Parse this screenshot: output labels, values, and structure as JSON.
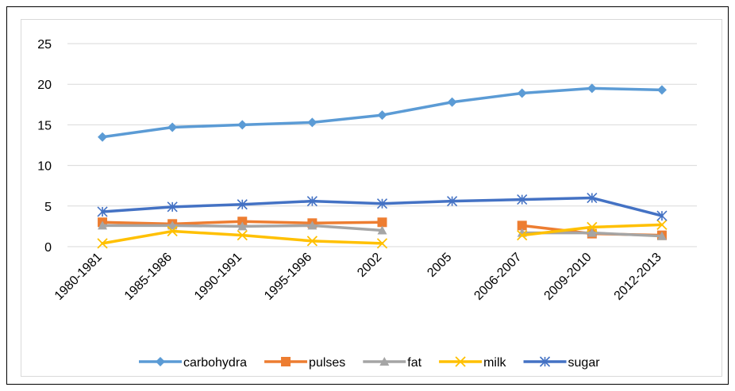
{
  "chart_data": {
    "type": "line",
    "categories": [
      "1980-1981",
      "1985-1986",
      "1990-1991",
      "1995-1996",
      "2002",
      "2005",
      "2006-2007",
      "2009-2010",
      "2012-2013"
    ],
    "ylim": [
      0,
      25
    ],
    "yticks": [
      0,
      5,
      10,
      15,
      20,
      25
    ],
    "grid": true,
    "legend_position": "bottom",
    "series": [
      {
        "name": "carbohydra",
        "color": "#5b9bd5",
        "marker": "diamond",
        "values": [
          13.5,
          14.7,
          15.0,
          15.3,
          16.2,
          17.8,
          18.9,
          19.5,
          19.3
        ]
      },
      {
        "name": "pulses",
        "color": "#ed7d31",
        "marker": "square",
        "values": [
          3.0,
          2.8,
          3.1,
          2.9,
          3.0,
          null,
          2.6,
          1.6,
          1.4
        ]
      },
      {
        "name": "fat",
        "color": "#a5a5a5",
        "marker": "triangle",
        "values": [
          2.6,
          2.6,
          2.5,
          2.6,
          2.0,
          null,
          1.7,
          1.7,
          1.3
        ]
      },
      {
        "name": "milk",
        "color": "#ffc000",
        "marker": "x",
        "values": [
          0.4,
          1.9,
          1.4,
          0.7,
          0.4,
          null,
          1.4,
          2.4,
          2.7
        ]
      },
      {
        "name": "sugar",
        "color": "#4472c4",
        "marker": "star",
        "values": [
          4.3,
          4.9,
          5.2,
          5.6,
          5.3,
          5.6,
          5.8,
          6.0,
          3.8
        ]
      }
    ]
  }
}
